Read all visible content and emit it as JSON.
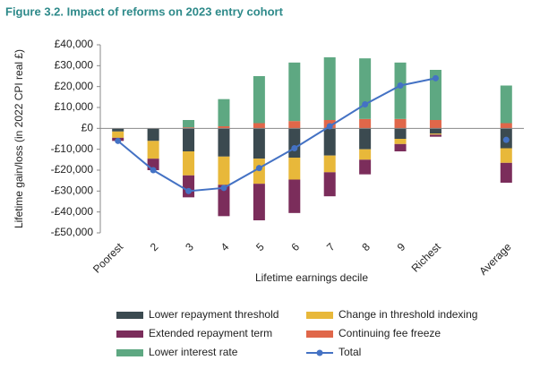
{
  "chart_data": {
    "type": "bar",
    "stacked": true,
    "title": "Figure 3.2. Impact of reforms on 2023 entry cohort",
    "xlabel": "Lifetime earnings decile",
    "ylabel": "Lifetime gain/loss (in 2022 CPI real £)",
    "categories": [
      "Poorest",
      "2",
      "3",
      "4",
      "5",
      "6",
      "7",
      "8",
      "9",
      "Richest",
      null,
      "Average"
    ],
    "ylim": [
      -50000,
      40000
    ],
    "yticks": [
      {
        "value": -50000,
        "label": "-£50,000"
      },
      {
        "value": -40000,
        "label": "-£40,000"
      },
      {
        "value": -30000,
        "label": "-£30,000"
      },
      {
        "value": -20000,
        "label": "-£20,000"
      },
      {
        "value": -10000,
        "label": "-£10,000"
      },
      {
        "value": 0,
        "label": "£0"
      },
      {
        "value": 10000,
        "label": "£10,000"
      },
      {
        "value": 20000,
        "label": "£20,000"
      },
      {
        "value": 30000,
        "label": "£30,000"
      },
      {
        "value": 40000,
        "label": "£40,000"
      }
    ],
    "series": [
      {
        "name": "Lower repayment threshold",
        "color": "#3b4a50",
        "values": [
          -1500,
          -6000,
          -11000,
          -13500,
          -14500,
          -14000,
          -13000,
          -10000,
          -5000,
          -2500,
          null,
          -9500
        ]
      },
      {
        "name": "Change in threshold indexing",
        "color": "#e8b83a",
        "values": [
          -3000,
          -8500,
          -11500,
          -13500,
          -12000,
          -10500,
          -8000,
          -5000,
          -2500,
          -500,
          null,
          -7000
        ]
      },
      {
        "name": "Extended repayment term",
        "color": "#7b2d5b",
        "values": [
          -1500,
          -5500,
          -10500,
          -15000,
          -17500,
          -16000,
          -11500,
          -7000,
          -3500,
          -1000,
          null,
          -9500
        ]
      },
      {
        "name": "Continuing fee freeze",
        "color": "#e0674a",
        "values": [
          0,
          0,
          500,
          1000,
          2500,
          3500,
          4000,
          4500,
          4500,
          4000,
          null,
          2500
        ]
      },
      {
        "name": "Lower interest rate",
        "color": "#5ea882",
        "values": [
          0,
          0,
          3500,
          13000,
          22500,
          28000,
          30000,
          29000,
          27000,
          24000,
          null,
          18000
        ]
      },
      {
        "name": "Total",
        "type": "line",
        "color": "#4472c4",
        "values": [
          -6000,
          -20000,
          -30000,
          -28500,
          -19000,
          -9500,
          1000,
          11500,
          20500,
          24000,
          null,
          -5500
        ]
      }
    ]
  }
}
